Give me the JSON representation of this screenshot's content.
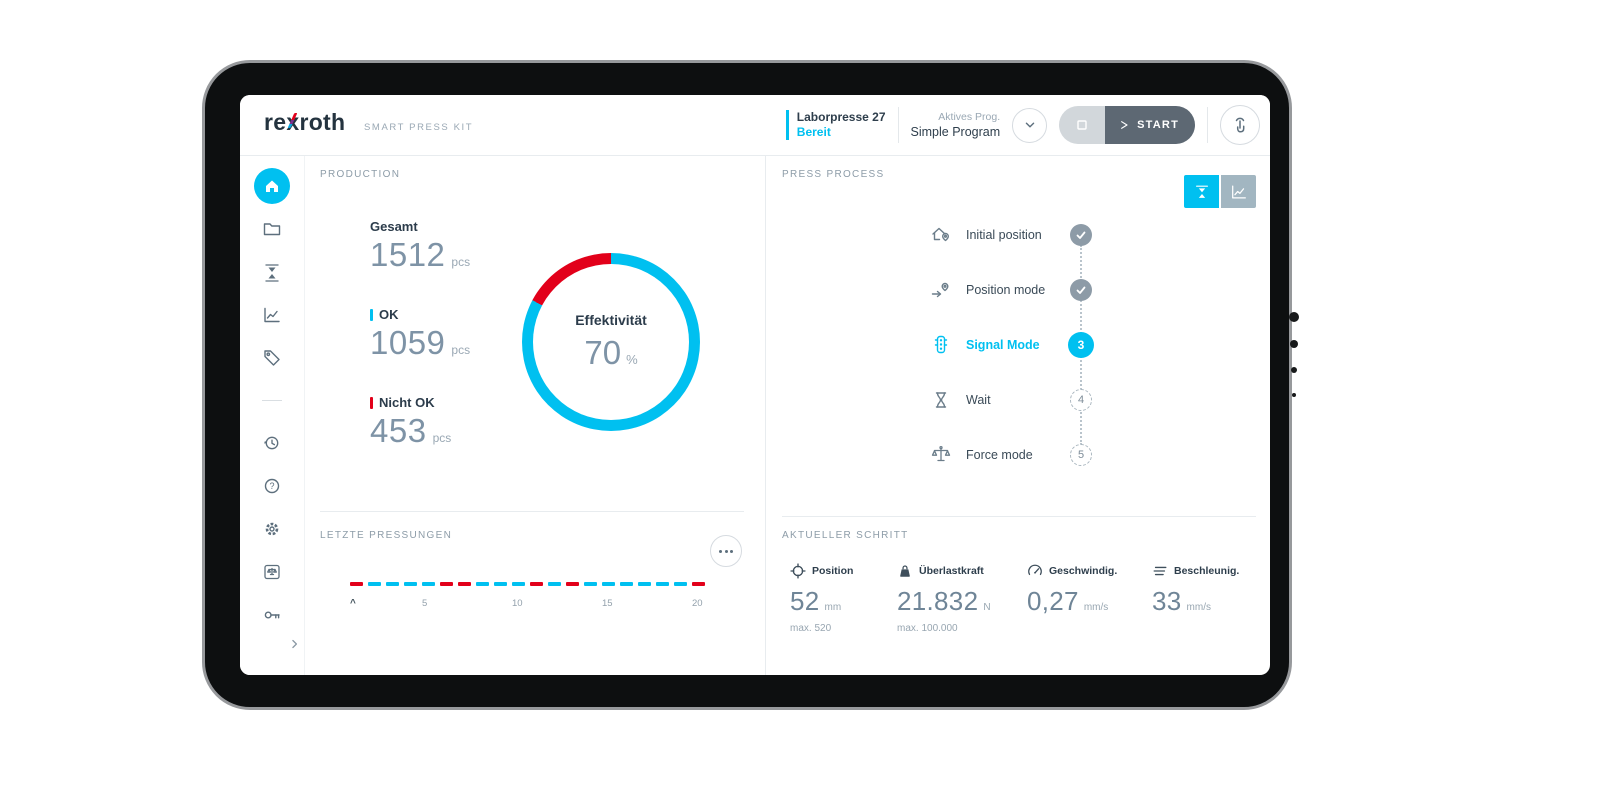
{
  "colors": {
    "cyan": "#00c0f0",
    "red": "#e2001a",
    "dark_text": "#2c3c4b",
    "start_button": "#5d6873"
  },
  "header": {
    "logo_parts": {
      "pre": "re",
      "x": "x",
      "suf": "roth"
    },
    "app_subtitle": "SMART PRESS KIT",
    "machine_name": "Laborpresse 27",
    "machine_status": "Bereit",
    "program_label": "Aktives Prog.",
    "program_name": "Simple Program",
    "start_label": "START",
    "icons": [
      "chevron-down-icon",
      "stop-icon",
      "play-icon",
      "touch-gesture-icon"
    ]
  },
  "sidebar": {
    "items": [
      {
        "icon": "home-icon",
        "active": true
      },
      {
        "icon": "folder-icon",
        "active": false
      },
      {
        "icon": "press-icon",
        "active": false
      },
      {
        "icon": "chart-icon",
        "active": false
      },
      {
        "icon": "tag-icon",
        "active": false
      },
      {
        "icon": "history-icon",
        "active": false
      },
      {
        "icon": "help-icon",
        "active": false
      },
      {
        "icon": "gear-icon",
        "active": false
      },
      {
        "icon": "scale-box-icon",
        "active": false
      },
      {
        "icon": "key-icon",
        "active": false
      },
      {
        "icon": "expand-chevron-icon",
        "active": false
      }
    ]
  },
  "production": {
    "title": "PRODUCTION",
    "stats": [
      {
        "label": "Gesamt",
        "value": "1512",
        "unit": "pcs",
        "accent": "none"
      },
      {
        "label": "OK",
        "value": "1059",
        "unit": "pcs",
        "accent": "cyan"
      },
      {
        "label": "Nicht OK",
        "value": "453",
        "unit": "pcs",
        "accent": "red"
      }
    ],
    "donut": {
      "label": "Effektivität",
      "value": "70",
      "unit": "%",
      "ring_red_deg": 62
    }
  },
  "last_presses": {
    "title": "LETZTE PRESSUNGEN",
    "menu_icon": "ellipsis-icon",
    "axis_marker": "^",
    "tick_labels": [
      "5",
      "10",
      "15",
      "20"
    ],
    "results": [
      "nok",
      "ok",
      "ok",
      "ok",
      "ok",
      "nok",
      "nok",
      "ok",
      "ok",
      "ok",
      "nok",
      "ok",
      "nok",
      "ok",
      "ok",
      "ok",
      "ok",
      "ok",
      "ok",
      "nok"
    ]
  },
  "process": {
    "title": "PRESS PROCESS",
    "view_toggle": [
      {
        "icon": "press-view-icon",
        "active": true
      },
      {
        "icon": "chart-view-icon",
        "active": false
      }
    ],
    "steps": [
      {
        "label": "Initial position",
        "status": "done",
        "icon": "home-position-icon"
      },
      {
        "label": "Position mode",
        "status": "done",
        "icon": "position-mode-icon"
      },
      {
        "label": "Signal Mode",
        "status": "active",
        "number": "3",
        "icon": "traffic-light-icon"
      },
      {
        "label": "Wait",
        "status": "pending",
        "number": "4",
        "icon": "hourglass-icon"
      },
      {
        "label": "Force mode",
        "status": "pending",
        "number": "5",
        "icon": "force-mode-icon"
      }
    ]
  },
  "current_step": {
    "title": "AKTUELLER SCHRITT",
    "metrics": [
      {
        "label": "Position",
        "value": "52",
        "unit": "mm",
        "max": "max. 520",
        "icon": "position-target-icon"
      },
      {
        "label": "Überlastkraft",
        "value": "21.832",
        "unit": "N",
        "max": "max. 100.000",
        "icon": "weight-icon"
      },
      {
        "label": "Geschwindig.",
        "value": "0,27",
        "unit": "mm/s",
        "max": "",
        "icon": "speedometer-icon"
      },
      {
        "label": "Beschleunig.",
        "value": "33",
        "unit": "mm/s",
        "max": "",
        "icon": "acceleration-icon"
      }
    ]
  },
  "chart_data": [
    {
      "type": "pie",
      "title": "Effektivität",
      "slices": [
        {
          "label": "OK",
          "value": 70,
          "color": "#00c0f0"
        },
        {
          "label": "Nicht OK",
          "value": 30,
          "color": "#e2001a"
        }
      ],
      "center_text": "70 %",
      "donut": true
    },
    {
      "type": "bar",
      "title": "LETZTE PRESSUNGEN",
      "categories": [
        1,
        2,
        3,
        4,
        5,
        6,
        7,
        8,
        9,
        10,
        11,
        12,
        13,
        14,
        15,
        16,
        17,
        18,
        19,
        20
      ],
      "results": [
        "nok",
        "ok",
        "ok",
        "ok",
        "ok",
        "nok",
        "nok",
        "ok",
        "ok",
        "ok",
        "nok",
        "ok",
        "nok",
        "ok",
        "ok",
        "ok",
        "ok",
        "ok",
        "ok",
        "nok"
      ],
      "x_ticks": [
        5,
        10,
        15,
        20
      ],
      "legend": {
        "ok": "#00c0f0",
        "nok": "#e2001a"
      }
    }
  ]
}
